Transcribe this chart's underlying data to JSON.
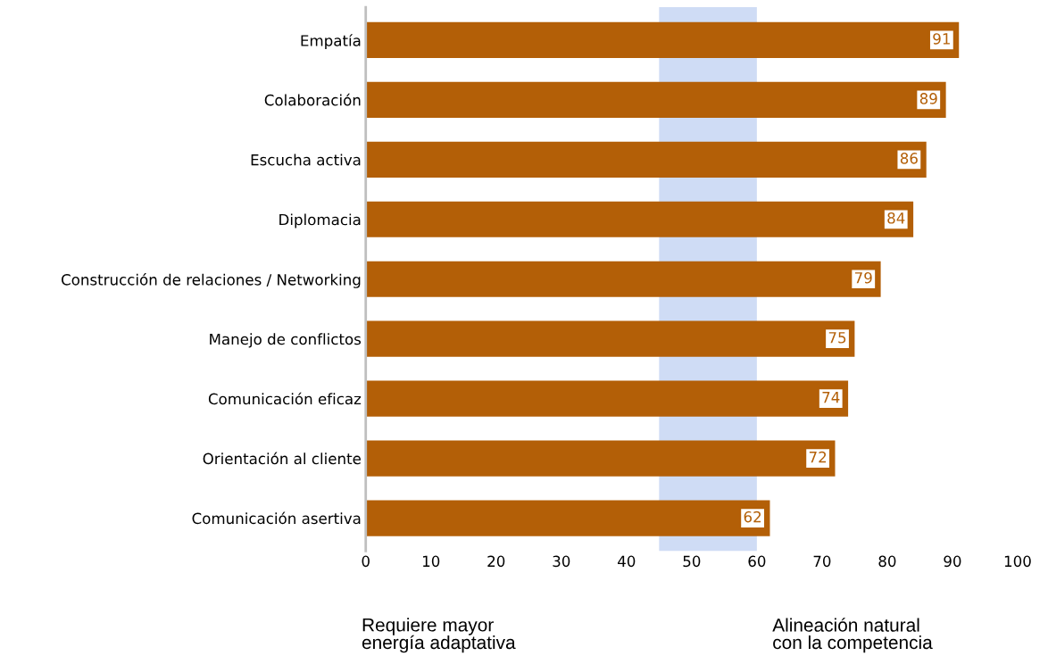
{
  "chart_data": {
    "type": "bar",
    "orientation": "horizontal",
    "categories": [
      "Empatía",
      "Colaboración",
      "Escucha activa",
      "Diplomacia",
      "Construcción de relaciones / Networking",
      "Manejo de conflictos",
      "Comunicación eficaz",
      "Orientación al cliente",
      "Comunicación asertiva"
    ],
    "values": [
      91,
      89,
      86,
      84,
      79,
      75,
      74,
      72,
      62
    ],
    "color": "#b35f07",
    "data_labels": true,
    "xlim": [
      0,
      100
    ],
    "xticks": [
      0,
      10,
      20,
      30,
      40,
      50,
      60,
      70,
      80,
      90,
      100
    ],
    "bands": [
      {
        "axis": "x",
        "from": 45,
        "to": 60,
        "label": null,
        "color": "#cfdcf5"
      }
    ],
    "grid": false,
    "legend": false,
    "annotations": [
      "Requiere mayor\nenergía adaptativa",
      "Alineación natural\ncon la competencia"
    ]
  }
}
